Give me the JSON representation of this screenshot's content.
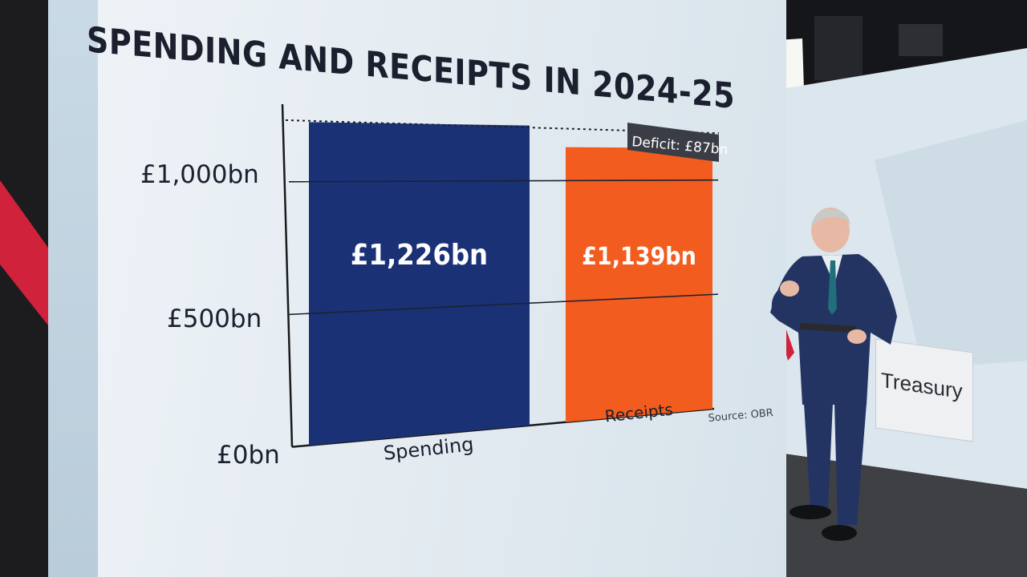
{
  "chart_data": {
    "type": "bar",
    "title": "SPENDING AND RECEIPTS IN 2024-25",
    "categories": [
      "Spending",
      "Receipts"
    ],
    "values": [
      1226,
      1139
    ],
    "value_labels": [
      "£1,226bn",
      "£1,139bn"
    ],
    "colors": [
      "#1a3176",
      "#f25c1e"
    ],
    "y_ticks": [
      {
        "value": 0,
        "label": "£0bn"
      },
      {
        "value": 500,
        "label": "£500bn"
      },
      {
        "value": 1000,
        "label": "£1,000bn"
      }
    ],
    "ylim": [
      0,
      1226
    ],
    "annotation": "Deficit: £87bn",
    "source": "Source: OBR",
    "grid": true
  },
  "scene": {
    "treasury_sign": "Treasury"
  }
}
